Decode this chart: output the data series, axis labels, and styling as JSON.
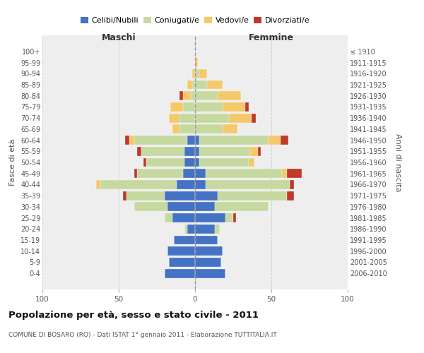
{
  "age_groups": [
    "100+",
    "95-99",
    "90-94",
    "85-89",
    "80-84",
    "75-79",
    "70-74",
    "65-69",
    "60-64",
    "55-59",
    "50-54",
    "45-49",
    "40-44",
    "35-39",
    "30-34",
    "25-29",
    "20-24",
    "15-19",
    "10-14",
    "5-9",
    "0-4"
  ],
  "birth_years": [
    "≤ 1910",
    "1911-1915",
    "1916-1920",
    "1921-1925",
    "1926-1930",
    "1931-1935",
    "1936-1940",
    "1941-1945",
    "1946-1950",
    "1951-1955",
    "1956-1960",
    "1961-1965",
    "1966-1970",
    "1971-1975",
    "1976-1980",
    "1981-1985",
    "1986-1990",
    "1991-1995",
    "1996-2000",
    "2001-2005",
    "2006-2010"
  ],
  "colors": {
    "celibi": "#4472C4",
    "coniugati": "#C5D9A0",
    "vedovi": "#F5C96A",
    "divorziati": "#C0392B"
  },
  "males_celibi": [
    0,
    0,
    0,
    0,
    0,
    0,
    0,
    0,
    5,
    7,
    7,
    8,
    12,
    20,
    18,
    15,
    5,
    14,
    18,
    17,
    20
  ],
  "males_coniugati": [
    0,
    0,
    0,
    2,
    3,
    8,
    10,
    10,
    35,
    28,
    25,
    30,
    50,
    25,
    22,
    5,
    2,
    0,
    0,
    0,
    0
  ],
  "males_vedovi": [
    0,
    0,
    2,
    3,
    5,
    8,
    7,
    5,
    3,
    0,
    0,
    0,
    3,
    0,
    0,
    0,
    0,
    0,
    0,
    0,
    0
  ],
  "males_divorziati": [
    0,
    0,
    0,
    0,
    2,
    0,
    0,
    0,
    3,
    3,
    2,
    2,
    0,
    2,
    0,
    0,
    0,
    0,
    0,
    0,
    0
  ],
  "females_celibi": [
    0,
    0,
    0,
    0,
    0,
    0,
    0,
    0,
    3,
    3,
    3,
    7,
    7,
    15,
    13,
    20,
    13,
    15,
    18,
    17,
    20
  ],
  "females_coniugati": [
    0,
    0,
    3,
    8,
    15,
    18,
    22,
    18,
    45,
    33,
    32,
    50,
    55,
    45,
    35,
    5,
    3,
    0,
    0,
    0,
    0
  ],
  "females_vedovi": [
    0,
    2,
    5,
    10,
    15,
    15,
    15,
    10,
    8,
    5,
    4,
    3,
    0,
    0,
    0,
    0,
    0,
    0,
    0,
    0,
    0
  ],
  "females_divorziati": [
    0,
    0,
    0,
    0,
    0,
    2,
    3,
    0,
    5,
    2,
    0,
    10,
    3,
    5,
    0,
    2,
    0,
    0,
    0,
    0,
    0
  ],
  "title": "Popolazione per età, sesso e stato civile - 2011",
  "subtitle": "COMUNE DI BOSARO (RO) - Dati ISTAT 1° gennaio 2011 - Elaborazione TUTTITALIA.IT",
  "label_maschi": "Maschi",
  "label_femmine": "Femmine",
  "ylabel_left": "Fasce di età",
  "ylabel_right": "Anni di nascita",
  "xlim": 100,
  "bg_color": "#ffffff",
  "panel_bg": "#eeeeee",
  "grid_color": "#cccccc",
  "legend_labels": [
    "Celibi/Nubili",
    "Coniugati/e",
    "Vedovi/e",
    "Divorziati/e"
  ]
}
